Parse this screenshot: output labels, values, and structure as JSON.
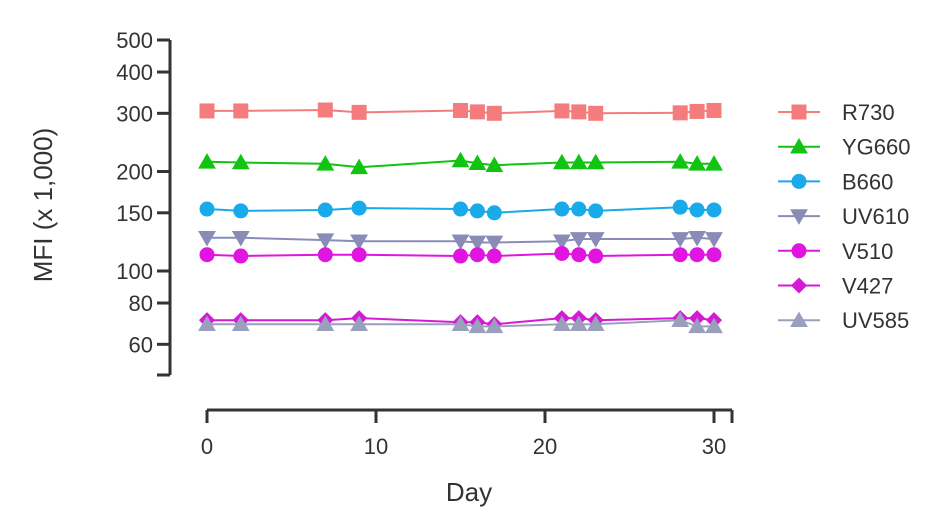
{
  "chart_data": {
    "type": "line",
    "title": "",
    "xlabel": "Day",
    "ylabel": "MFI (x 1,000)",
    "xlim": [
      0,
      30
    ],
    "ylim": [
      50,
      500
    ],
    "yscale": "log",
    "x_ticks": [
      0,
      10,
      20,
      30
    ],
    "y_ticks": [
      60,
      80,
      100,
      150,
      200,
      300,
      400,
      500
    ],
    "grid": false,
    "legend": "right",
    "x": [
      0,
      2,
      7,
      9,
      15,
      16,
      17,
      21,
      22,
      23,
      28,
      29,
      30
    ],
    "series": [
      {
        "name": "R730",
        "color": "#f47c7c",
        "marker": "square",
        "values": [
          305,
          305,
          307,
          302,
          306,
          303,
          300,
          305,
          303,
          300,
          301,
          304,
          306
        ]
      },
      {
        "name": "YG660",
        "color": "#11c411",
        "marker": "triangle-up",
        "values": [
          214,
          213,
          211,
          206,
          216,
          212,
          209,
          213,
          213,
          213,
          214,
          211,
          211
        ]
      },
      {
        "name": "B660",
        "color": "#19aaea",
        "marker": "circle",
        "values": [
          154,
          152,
          153,
          155,
          154,
          152,
          150,
          154,
          154,
          152,
          156,
          153,
          153
        ]
      },
      {
        "name": "UV610",
        "color": "#8b8bb8",
        "marker": "triangle-down",
        "values": [
          126,
          126,
          124,
          123,
          123,
          122,
          122,
          123,
          125,
          125,
          125,
          126,
          125
        ]
      },
      {
        "name": "V510",
        "color": "#e015e0",
        "marker": "circle",
        "values": [
          112,
          111,
          112,
          112,
          111,
          112,
          111,
          113,
          112,
          111,
          112,
          112,
          112
        ]
      },
      {
        "name": "V427",
        "color": "#d41ad4",
        "marker": "diamond",
        "values": [
          71,
          71,
          71,
          72,
          70,
          70,
          69,
          72,
          72,
          71,
          72,
          72,
          71
        ]
      },
      {
        "name": "UV585",
        "color": "#9aa0bc",
        "marker": "triangle-up",
        "values": [
          69,
          69,
          69,
          69,
          69,
          68,
          68,
          69,
          69,
          69,
          71,
          68,
          68
        ]
      }
    ]
  }
}
